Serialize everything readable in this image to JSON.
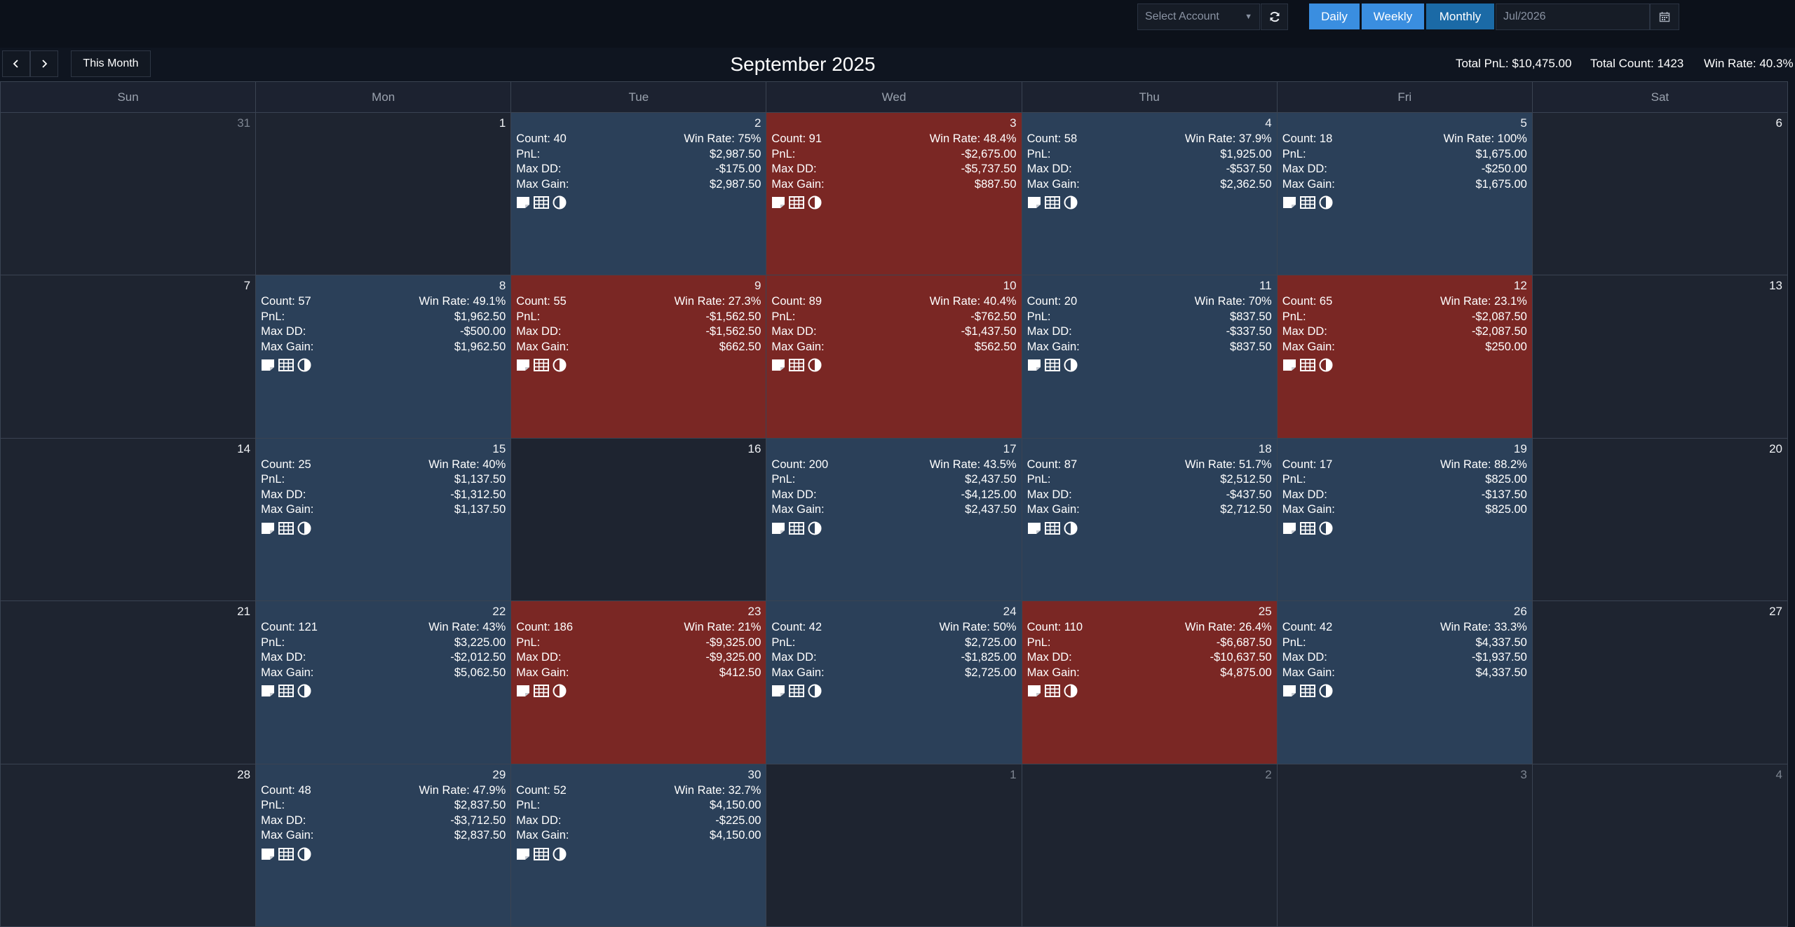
{
  "toolbar": {
    "account_placeholder": "Select Account",
    "daily_label": "Daily",
    "weekly_label": "Weekly",
    "monthly_label": "Monthly",
    "month_value": "Jul/2026"
  },
  "nav": {
    "this_month_label": "This Month",
    "title": "September 2025"
  },
  "summary": {
    "total_pnl": "Total PnL: $10,475.00",
    "total_count": "Total Count: 1423",
    "win_rate": "Win Rate: 40.3%"
  },
  "labels": {
    "count": "Count:",
    "win_rate": "Win Rate:",
    "pnl": "PnL:",
    "max_dd": "Max DD:",
    "max_gain": "Max Gain:"
  },
  "colors": {
    "positive": "#2b4059",
    "negative": "#7a2724",
    "empty": "#1e2430"
  },
  "weekdays": [
    "Sun",
    "Mon",
    "Tue",
    "Wed",
    "Thu",
    "Fri",
    "Sat"
  ],
  "days": [
    {
      "day": "31",
      "other": true
    },
    {
      "day": "1"
    },
    {
      "day": "2",
      "status": "pos",
      "count": "40",
      "win_rate": "75%",
      "pnl": "$2,987.50",
      "max_dd": "-$175.00",
      "max_gain": "$2,987.50"
    },
    {
      "day": "3",
      "status": "neg",
      "count": "91",
      "win_rate": "48.4%",
      "pnl": "-$2,675.00",
      "max_dd": "-$5,737.50",
      "max_gain": "$887.50"
    },
    {
      "day": "4",
      "status": "pos",
      "count": "58",
      "win_rate": "37.9%",
      "pnl": "$1,925.00",
      "max_dd": "-$537.50",
      "max_gain": "$2,362.50"
    },
    {
      "day": "5",
      "status": "pos",
      "count": "18",
      "win_rate": "100%",
      "pnl": "$1,675.00",
      "max_dd": "-$250.00",
      "max_gain": "$1,675.00"
    },
    {
      "day": "6"
    },
    {
      "day": "7"
    },
    {
      "day": "8",
      "status": "pos",
      "count": "57",
      "win_rate": "49.1%",
      "pnl": "$1,962.50",
      "max_dd": "-$500.00",
      "max_gain": "$1,962.50"
    },
    {
      "day": "9",
      "status": "neg",
      "count": "55",
      "win_rate": "27.3%",
      "pnl": "-$1,562.50",
      "max_dd": "-$1,562.50",
      "max_gain": "$662.50"
    },
    {
      "day": "10",
      "status": "neg",
      "count": "89",
      "win_rate": "40.4%",
      "pnl": "-$762.50",
      "max_dd": "-$1,437.50",
      "max_gain": "$562.50"
    },
    {
      "day": "11",
      "status": "pos",
      "count": "20",
      "win_rate": "70%",
      "pnl": "$837.50",
      "max_dd": "-$337.50",
      "max_gain": "$837.50"
    },
    {
      "day": "12",
      "status": "neg",
      "count": "65",
      "win_rate": "23.1%",
      "pnl": "-$2,087.50",
      "max_dd": "-$2,087.50",
      "max_gain": "$250.00"
    },
    {
      "day": "13"
    },
    {
      "day": "14"
    },
    {
      "day": "15",
      "status": "pos",
      "count": "25",
      "win_rate": "40%",
      "pnl": "$1,137.50",
      "max_dd": "-$1,312.50",
      "max_gain": "$1,137.50"
    },
    {
      "day": "16"
    },
    {
      "day": "17",
      "status": "pos",
      "count": "200",
      "win_rate": "43.5%",
      "pnl": "$2,437.50",
      "max_dd": "-$4,125.00",
      "max_gain": "$2,437.50"
    },
    {
      "day": "18",
      "status": "pos",
      "count": "87",
      "win_rate": "51.7%",
      "pnl": "$2,512.50",
      "max_dd": "-$437.50",
      "max_gain": "$2,712.50"
    },
    {
      "day": "19",
      "status": "pos",
      "count": "17",
      "win_rate": "88.2%",
      "pnl": "$825.00",
      "max_dd": "-$137.50",
      "max_gain": "$825.00"
    },
    {
      "day": "20"
    },
    {
      "day": "21"
    },
    {
      "day": "22",
      "status": "pos",
      "count": "121",
      "win_rate": "43%",
      "pnl": "$3,225.00",
      "max_dd": "-$2,012.50",
      "max_gain": "$5,062.50"
    },
    {
      "day": "23",
      "status": "neg",
      "count": "186",
      "win_rate": "21%",
      "pnl": "-$9,325.00",
      "max_dd": "-$9,325.00",
      "max_gain": "$412.50"
    },
    {
      "day": "24",
      "status": "pos",
      "count": "42",
      "win_rate": "50%",
      "pnl": "$2,725.00",
      "max_dd": "-$1,825.00",
      "max_gain": "$2,725.00"
    },
    {
      "day": "25",
      "status": "neg",
      "count": "110",
      "win_rate": "26.4%",
      "pnl": "-$6,687.50",
      "max_dd": "-$10,637.50",
      "max_gain": "$4,875.00"
    },
    {
      "day": "26",
      "status": "pos",
      "count": "42",
      "win_rate": "33.3%",
      "pnl": "$4,337.50",
      "max_dd": "-$1,937.50",
      "max_gain": "$4,337.50"
    },
    {
      "day": "27"
    },
    {
      "day": "28"
    },
    {
      "day": "29",
      "status": "pos",
      "count": "48",
      "win_rate": "47.9%",
      "pnl": "$2,837.50",
      "max_dd": "-$3,712.50",
      "max_gain": "$2,837.50"
    },
    {
      "day": "30",
      "status": "pos",
      "count": "52",
      "win_rate": "32.7%",
      "pnl": "$4,150.00",
      "max_dd": "-$225.00",
      "max_gain": "$4,150.00"
    },
    {
      "day": "1",
      "other": true
    },
    {
      "day": "2",
      "other": true
    },
    {
      "day": "3",
      "other": true
    },
    {
      "day": "4",
      "other": true
    }
  ]
}
